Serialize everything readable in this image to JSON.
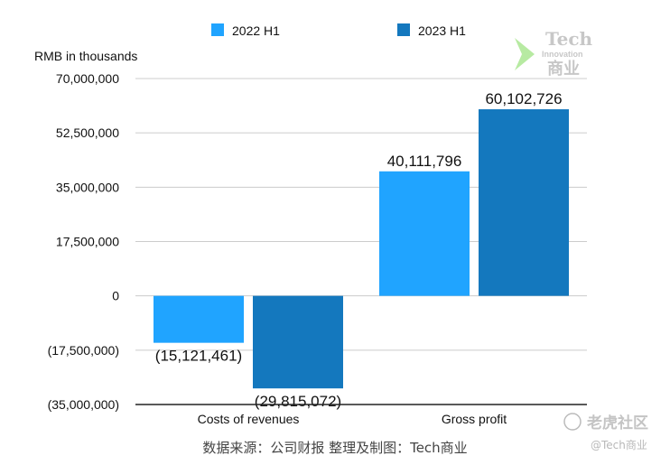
{
  "chart_data": {
    "type": "bar",
    "ylabel": "RMB in thousands",
    "categories": [
      "Costs of revenues",
      "Gross profit"
    ],
    "series": [
      {
        "name": "2022 H1",
        "values": [
          -15121461,
          40111796
        ],
        "color": "#20A4FF"
      },
      {
        "name": "2023 H1",
        "values": [
          -29815072,
          60102726
        ],
        "color": "#1478BE"
      }
    ],
    "data_labels": [
      [
        "(15,121,461)",
        "40,111,796"
      ],
      [
        "(29,815,072)",
        "60,102,726"
      ]
    ],
    "yticks": [
      70000000,
      52500000,
      35000000,
      17500000,
      0,
      -17500000,
      -35000000
    ],
    "ytick_labels": [
      "70,000,000",
      "52,500,000",
      "35,000,000",
      "17,500,000",
      "0",
      "(17,500,000)",
      "(35,000,000)"
    ],
    "ylim": [
      -35000000,
      70000000
    ],
    "grid": true,
    "legend_position": "top"
  },
  "source_text": "数据来源：公司财报 整理及制图：Tech商业",
  "watermark": {
    "logo_text_top": "Tech",
    "logo_text_mid": "Innovation",
    "logo_text_bottom": "商业",
    "site_text": "老虎社区",
    "handle_text": "@Tech商业"
  },
  "colors": {
    "grid": "#CCCCCC",
    "axis": "#222222",
    "text": "#111111",
    "source": "#444444",
    "logo_green": "#7ED957"
  }
}
